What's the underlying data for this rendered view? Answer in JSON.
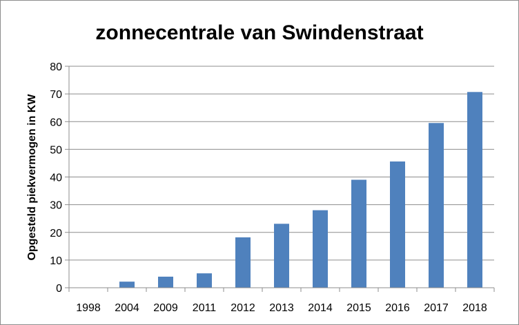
{
  "chart_data": {
    "type": "bar",
    "title": "zonnecentrale van Swindenstraat",
    "xlabel": "",
    "ylabel": "Opgesteld piekvermogen in KW",
    "categories": [
      "1998",
      "2004",
      "2009",
      "2011",
      "2012",
      "2013",
      "2014",
      "2015",
      "2016",
      "2017",
      "2018"
    ],
    "values": [
      0.1,
      2.2,
      4,
      5.2,
      18.2,
      23.1,
      28,
      39,
      45.6,
      59.5,
      70.7
    ],
    "ylim": [
      0,
      80
    ],
    "yticks": [
      "0",
      "10",
      "20",
      "30",
      "40",
      "50",
      "60",
      "70",
      "80"
    ],
    "grid": true,
    "legend": "none",
    "bar_color": "#4f81bd"
  }
}
